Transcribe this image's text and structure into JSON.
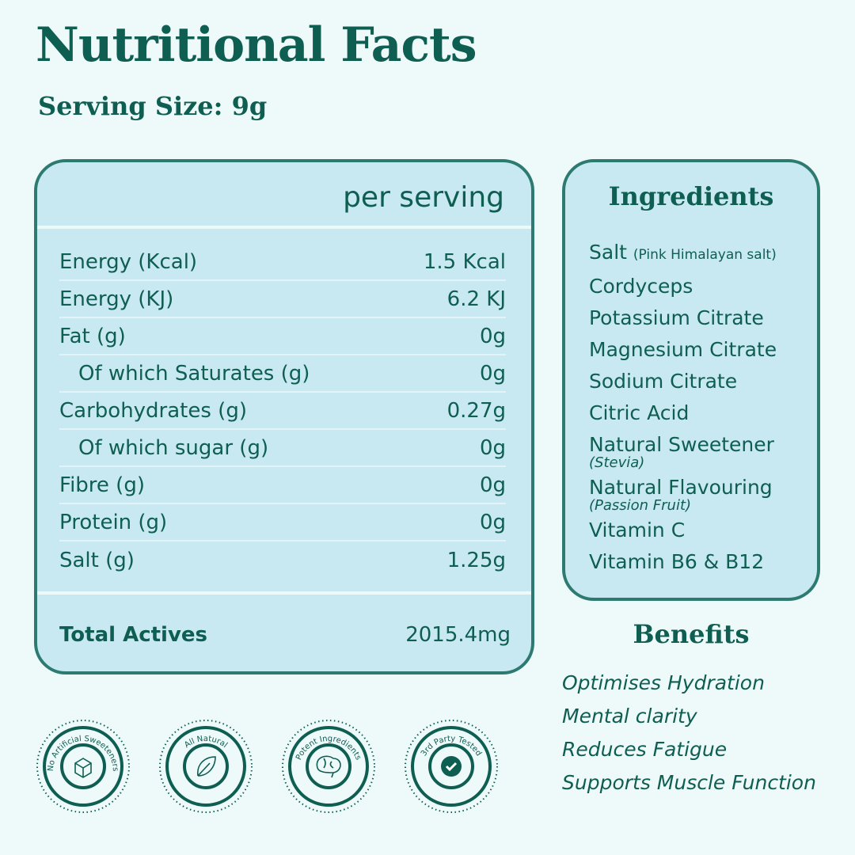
{
  "header": {
    "title": "Nutritional Facts",
    "serving_size": "Serving Size: 9g"
  },
  "table": {
    "column_header": "per serving",
    "rows": [
      {
        "label": "Energy (Kcal)",
        "value": "1.5 Kcal"
      },
      {
        "label": "Energy (KJ)",
        "value": "6.2 KJ"
      },
      {
        "label": "Fat (g)",
        "value": "0g"
      },
      {
        "label": "Of which Saturates (g)",
        "value": "0g",
        "indent": true
      },
      {
        "label": "Carbohydrates (g)",
        "value": "0.27g"
      },
      {
        "label": "Of which sugar (g)",
        "value": "0g",
        "indent": true
      },
      {
        "label": "Fibre (g)",
        "value": "0g"
      },
      {
        "label": "Protein (g)",
        "value": "0g"
      },
      {
        "label": "Salt (g)",
        "value": "1.25g"
      }
    ],
    "total": {
      "label": "Total Actives",
      "value": "2015.4mg"
    }
  },
  "ingredients": {
    "title": "Ingredients",
    "items": [
      {
        "name": "Salt",
        "detail": "(Pink Himalayan salt)"
      },
      {
        "name": "Cordyceps"
      },
      {
        "name": "Potassium Citrate"
      },
      {
        "name": "Magnesium Citrate"
      },
      {
        "name": "Sodium Citrate"
      },
      {
        "name": "Citric Acid"
      },
      {
        "name": "Natural Sweetener",
        "note": "(Stevia)"
      },
      {
        "name": "Natural Flavouring",
        "note": "(Passion Fruit)"
      },
      {
        "name": "Vitamin C"
      },
      {
        "name": "Vitamin B6 & B12"
      }
    ]
  },
  "benefits": {
    "title": "Benefits",
    "items": [
      "Optimises Hydration",
      "Mental clarity",
      "Reduces Fatigue",
      "Supports Muscle Function"
    ]
  },
  "badges": [
    "No Artificial Sweeteners",
    "All Natural",
    "Potent Ingredients",
    "3rd Party Tested"
  ]
}
